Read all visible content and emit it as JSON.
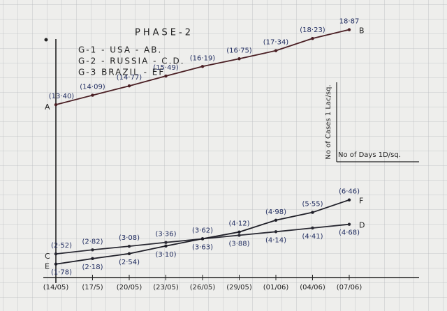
{
  "chart_data": {
    "type": "line",
    "title": "PHASE-2",
    "y_label": "No of Cases 1 Lac/sq.",
    "x_label": "No of Days 1D/sq.",
    "categories": [
      "(14/05)",
      "(17/5)",
      "(20/05)",
      "(23/05)",
      "(26/05)",
      "(29/05)",
      "(01/06)",
      "(04/06)",
      "(07/06)"
    ],
    "ylim": [
      0.8,
      19
    ],
    "series": [
      {
        "name": "G-1 - USA - AB.",
        "color": "#4a1f24",
        "start_label": "A",
        "end_label": "B",
        "values": [
          13.4,
          14.09,
          14.77,
          15.49,
          16.19,
          16.75,
          17.34,
          18.23,
          18.87
        ],
        "value_labels": [
          "(13·40)",
          "(14·09)",
          "(14·77)",
          "(15·49)",
          "(16·19)",
          "(16·75)",
          "(17·34)",
          "(18·23)",
          "18·87"
        ]
      },
      {
        "name": "G-2 - RUSSIA - C.D.",
        "color": "#2a2a33",
        "start_label": "C",
        "end_label": "D",
        "values": [
          2.52,
          2.82,
          3.08,
          3.36,
          3.62,
          3.88,
          4.14,
          4.41,
          4.68
        ],
        "value_labels": [
          "(2·52)",
          "(2·82)",
          "(3·08)",
          "(3·36)",
          "(3·62)",
          "(3·88)",
          "(4·14)",
          "(4·41)",
          "(4·68)"
        ]
      },
      {
        "name": "G-3 BRAZIL - EF",
        "color": "#1f1f28",
        "start_label": "E",
        "end_label": "F",
        "values": [
          1.78,
          2.18,
          2.54,
          3.1,
          3.63,
          4.12,
          4.98,
          5.55,
          6.46
        ],
        "value_labels": [
          "(1·78)",
          "(2·18)",
          "(2·54)",
          "(3·10)",
          "(3·63)",
          "(4·12)",
          "(4·98)",
          "(5·55)",
          "(6·46)"
        ]
      }
    ]
  }
}
